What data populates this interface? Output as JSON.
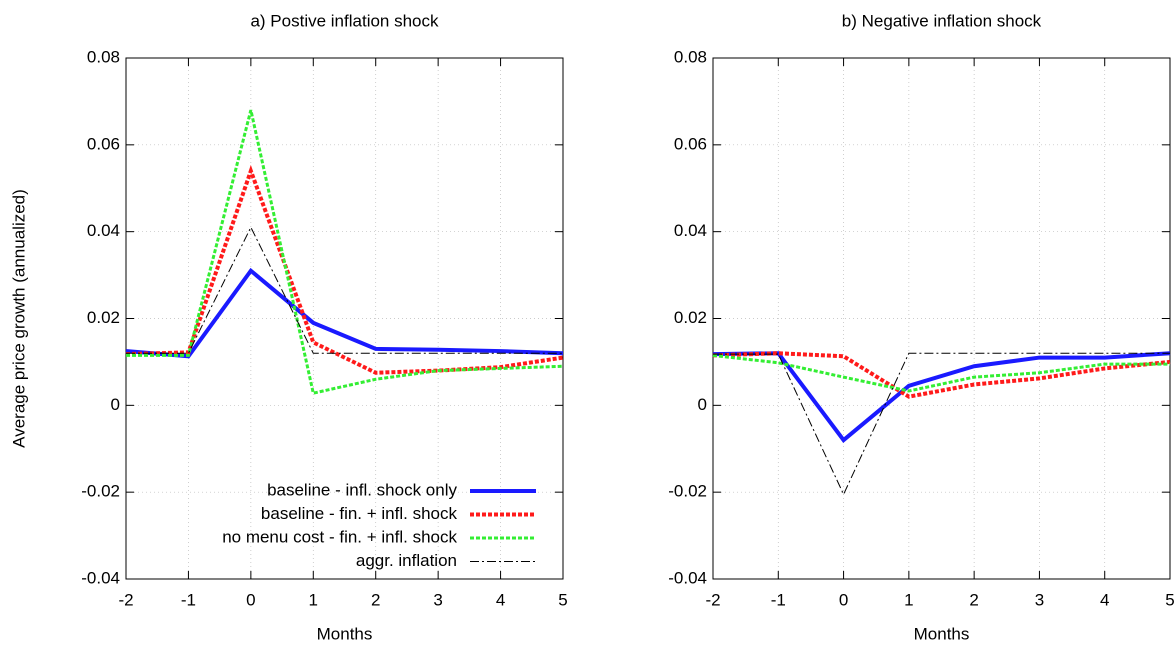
{
  "chart_data": [
    {
      "type": "line",
      "title": "a) Postive inflation shock",
      "xlabel": "Months",
      "ylabel": "Average price growth (annualized)",
      "x": [
        -2,
        -1,
        0,
        1,
        2,
        3,
        4,
        5
      ],
      "xlim": [
        -2,
        5
      ],
      "xticks": [
        -2,
        -1,
        0,
        1,
        2,
        3,
        4,
        5
      ],
      "ylim": [
        -0.04,
        0.08
      ],
      "yticks": [
        -0.04,
        -0.02,
        0,
        0.02,
        0.04,
        0.06,
        0.08
      ],
      "grid": true,
      "legend": "lower right",
      "series": [
        {
          "name": "baseline - infl. shock only",
          "color": "#1a1aff",
          "style": "solid",
          "values": [
            0.0125,
            0.0113,
            0.031,
            0.019,
            0.013,
            0.0128,
            0.0125,
            0.012
          ]
        },
        {
          "name": "baseline - fin. + infl. shock",
          "color": "#ff1a1a",
          "style": "dotted",
          "values": [
            0.0118,
            0.0122,
            0.054,
            0.0145,
            0.0075,
            0.008,
            0.0088,
            0.011
          ]
        },
        {
          "name": "no menu cost - fin. + infl. shock",
          "color": "#33ee33",
          "style": "dotted",
          "values": [
            0.0115,
            0.0115,
            0.068,
            0.0028,
            0.006,
            0.008,
            0.0085,
            0.009
          ]
        },
        {
          "name": "aggr. inflation",
          "color": "#000000",
          "style": "dashdot",
          "values": [
            0.012,
            0.012,
            0.041,
            0.012,
            0.012,
            0.012,
            0.012,
            0.012
          ]
        }
      ]
    },
    {
      "type": "line",
      "title": "b) Negative inflation shock",
      "xlabel": "Months",
      "x": [
        -2,
        -1,
        0,
        1,
        2,
        3,
        4,
        5
      ],
      "xlim": [
        -2,
        5
      ],
      "xticks": [
        -2,
        -1,
        0,
        1,
        2,
        3,
        4,
        5
      ],
      "ylim": [
        -0.04,
        0.08
      ],
      "yticks": [
        -0.04,
        -0.02,
        0,
        0.02,
        0.04,
        0.06,
        0.08
      ],
      "grid": true,
      "series": [
        {
          "color": "#1a1aff",
          "style": "solid",
          "values": [
            0.0118,
            0.012,
            -0.008,
            0.0045,
            0.009,
            0.011,
            0.011,
            0.012
          ]
        },
        {
          "color": "#ff1a1a",
          "style": "dotted",
          "values": [
            0.0115,
            0.012,
            0.0113,
            0.002,
            0.0048,
            0.0062,
            0.0085,
            0.01
          ]
        },
        {
          "color": "#33ee33",
          "style": "dotted",
          "values": [
            0.0115,
            0.0098,
            0.0065,
            0.0033,
            0.0065,
            0.0075,
            0.0095,
            0.0095
          ]
        },
        {
          "color": "#000000",
          "style": "dashdot",
          "values": [
            0.0118,
            0.0118,
            -0.0205,
            0.012,
            0.012,
            0.012,
            0.012,
            0.012
          ]
        }
      ]
    }
  ]
}
